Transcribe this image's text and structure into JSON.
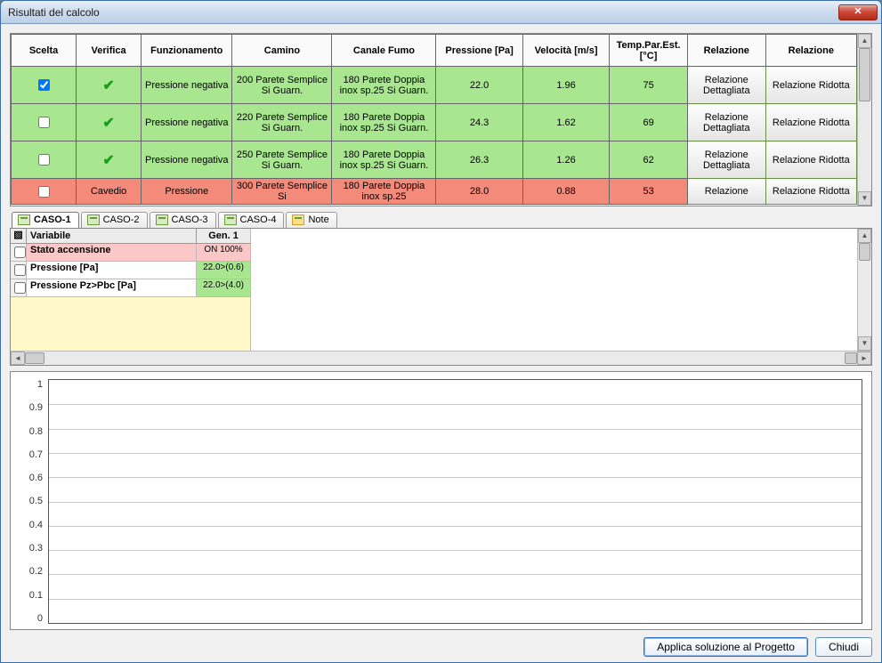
{
  "window": {
    "title": "Risultati del calcolo"
  },
  "main_table": {
    "headers": [
      "Scelta",
      "Verifica",
      "Funzionamento",
      "Camino",
      "Canale Fumo",
      "Pressione [Pa]",
      "Velocità [m/s]",
      "Temp.Par.Est. [°C]",
      "Relazione",
      "Relazione"
    ],
    "rows": [
      {
        "status": "ok",
        "scelta": true,
        "verifica": "✔",
        "funz": "Pressione negativa",
        "camino": "200 Parete Semplice Si Guarn.",
        "canale": "180 Parete Doppia inox sp.25 Si Guarn.",
        "press": "22.0",
        "vel": "1.96",
        "temp": "75",
        "rel1": "Relazione Dettagliata",
        "rel2": "Relazione Ridotta",
        "row_bg": "#a8e78f"
      },
      {
        "status": "ok",
        "scelta": false,
        "verifica": "✔",
        "funz": "Pressione negativa",
        "camino": "220 Parete Semplice Si Guarn.",
        "canale": "180 Parete Doppia inox sp.25 Si Guarn.",
        "press": "24.3",
        "vel": "1.62",
        "temp": "69",
        "rel1": "Relazione Dettagliata",
        "rel2": "Relazione Ridotta",
        "row_bg": "#a8e78f"
      },
      {
        "status": "ok",
        "scelta": false,
        "verifica": "✔",
        "funz": "Pressione negativa",
        "camino": "250 Parete Semplice Si Guarn.",
        "canale": "180 Parete Doppia inox sp.25 Si Guarn.",
        "press": "26.3",
        "vel": "1.26",
        "temp": "62",
        "rel1": "Relazione Dettagliata",
        "rel2": "Relazione Ridotta",
        "row_bg": "#a8e78f"
      },
      {
        "status": "bad",
        "scelta": false,
        "verifica": "Cavedio",
        "funz": "Pressione",
        "camino": "300 Parete Semplice Si",
        "canale": "180 Parete Doppia inox sp.25",
        "press": "28.0",
        "vel": "0.88",
        "temp": "53",
        "rel1": "Relazione",
        "rel2": "Relazione Ridotta",
        "row_bg": "#f48a7a"
      }
    ],
    "colors": {
      "ok_bg": "#a8e78f",
      "bad_bg": "#f48a7a",
      "header_bg": "#fafafa",
      "border": "#666666",
      "btn_bg_top": "#fdfdfd",
      "btn_bg_bot": "#e5e5e5",
      "btn_border": "#6b8f4a"
    }
  },
  "tabs": [
    {
      "id": "caso1",
      "label": "CASO-1",
      "active": true
    },
    {
      "id": "caso2",
      "label": "CASO-2",
      "active": false
    },
    {
      "id": "caso3",
      "label": "CASO-3",
      "active": false
    },
    {
      "id": "caso4",
      "label": "CASO-4",
      "active": false
    },
    {
      "id": "note",
      "label": "Note",
      "active": false,
      "note": true
    }
  ],
  "var_table": {
    "header_icon": "▧",
    "headers": [
      "Variabile",
      "Gen. 1"
    ],
    "rows": [
      {
        "kind": "pink",
        "label": "Stato accensione",
        "value": "ON 100%",
        "value_bg": "#fbc7c7"
      },
      {
        "kind": "green",
        "label": "Pressione [Pa]",
        "value": "22.0>(0.6)",
        "value_bg": "#a8e78f"
      },
      {
        "kind": "green",
        "label": "Pressione Pz>Pbc [Pa]",
        "value": "22.0>(4.0)",
        "value_bg": "#a8e78f"
      }
    ],
    "colors": {
      "blank_bg": "#fff8c8",
      "pink_bg": "#fbc7c7",
      "green_bg": "#a8e78f",
      "head_bg": "#ececec",
      "border": "#bbbbbb"
    }
  },
  "chart": {
    "type": "line",
    "ylim": [
      0,
      1
    ],
    "ytick_step": 0.1,
    "yticks": [
      "1",
      "0.9",
      "0.8",
      "0.7",
      "0.6",
      "0.5",
      "0.4",
      "0.3",
      "0.2",
      "0.1",
      "0"
    ],
    "grid_color": "#c8c8c8",
    "axis_color": "#555555",
    "background_color": "#ffffff",
    "series": []
  },
  "footer": {
    "apply": "Applica soluzione al Progetto",
    "close": "Chiudi"
  }
}
